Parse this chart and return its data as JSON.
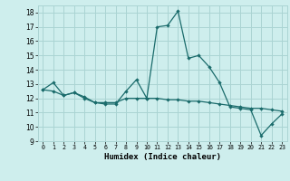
{
  "title": "",
  "xlabel": "Humidex (Indice chaleur)",
  "background_color": "#ceeeed",
  "grid_color": "#aad4d3",
  "line_color": "#1a6b6b",
  "xlim": [
    -0.5,
    23.5
  ],
  "ylim": [
    9,
    18.5
  ],
  "yticks": [
    9,
    10,
    11,
    12,
    13,
    14,
    15,
    16,
    17,
    18
  ],
  "xticks": [
    0,
    1,
    2,
    3,
    4,
    5,
    6,
    7,
    8,
    9,
    10,
    11,
    12,
    13,
    14,
    15,
    16,
    17,
    18,
    19,
    20,
    21,
    22,
    23
  ],
  "series1_x": [
    0,
    1,
    2,
    3,
    4,
    5,
    6,
    7,
    8,
    9,
    10,
    11,
    12,
    13,
    14,
    15,
    16,
    17,
    18,
    19,
    20,
    21,
    22,
    23
  ],
  "series1_y": [
    12.6,
    13.1,
    12.2,
    12.4,
    12.0,
    11.7,
    11.6,
    11.6,
    12.5,
    13.3,
    12.0,
    17.0,
    17.1,
    18.1,
    14.8,
    15.0,
    14.2,
    13.1,
    11.4,
    11.3,
    11.2,
    9.4,
    10.2,
    10.9
  ],
  "series2_x": [
    0,
    1,
    2,
    3,
    4,
    5,
    6,
    7,
    8,
    9,
    10,
    11,
    12,
    13,
    14,
    15,
    16,
    17,
    18,
    19,
    20,
    21,
    22,
    23
  ],
  "series2_y": [
    12.6,
    12.5,
    12.2,
    12.4,
    12.1,
    11.7,
    11.7,
    11.7,
    12.0,
    12.0,
    12.0,
    12.0,
    11.9,
    11.9,
    11.8,
    11.8,
    11.7,
    11.6,
    11.5,
    11.4,
    11.3,
    11.3,
    11.2,
    11.1
  ]
}
